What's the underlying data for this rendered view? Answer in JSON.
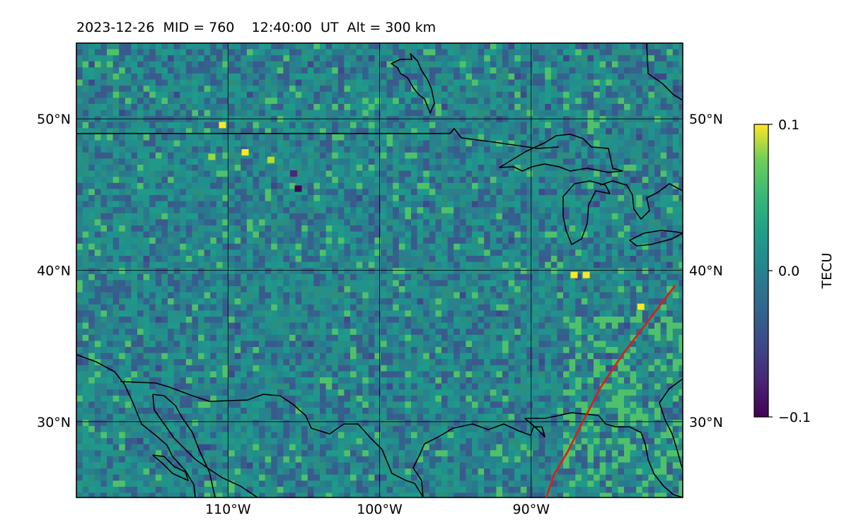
{
  "title": "2023-12-26  MID = 760    12:40:00  UT  Alt = 300 km",
  "map": {
    "lon_range": [
      -120,
      -80
    ],
    "lat_range": [
      25,
      55
    ],
    "grid_lon": [
      -110,
      -100,
      -90
    ],
    "grid_lat": [
      30,
      40,
      50
    ],
    "lon_labels": [
      "110°W",
      "100°W",
      "90°W"
    ],
    "lat_labels": [
      "30°N",
      "40°N",
      "50°N"
    ],
    "track_color": "#e8190e",
    "track": [
      [
        -89,
        25
      ],
      [
        -88.5,
        26.5
      ],
      [
        -87.6,
        28
      ],
      [
        -86.6,
        30
      ],
      [
        -85.4,
        32.3
      ],
      [
        -84,
        34.4
      ],
      [
        -82.4,
        36.5
      ],
      [
        -80.5,
        39
      ]
    ]
  },
  "colorbar": {
    "label": "TECU",
    "min": -0.1,
    "max": 0.1,
    "ticks": [
      "0.1",
      "0.0",
      "−0.1"
    ],
    "colormap": "viridis"
  }
}
